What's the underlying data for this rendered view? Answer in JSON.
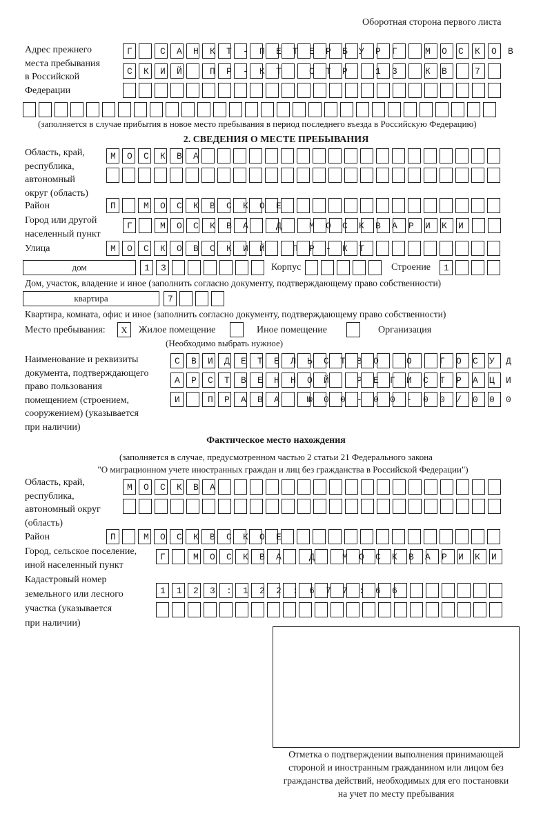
{
  "page_header": "Оборотная сторона первого листа",
  "previous_address": {
    "label": [
      "Адрес прежнего",
      "места пребывания",
      "в Российской",
      "Федерации"
    ],
    "rows": [
      "Г САНКТ-ПЕТЕРБУРГ МОСКОВ",
      "СКИЙ ПР-КТ СТР 13 КВ 7  ",
      "                        ",
      "                              "
    ],
    "note": "(заполняется в случае прибытия в новое место пребывания в период последнего въезда в Российскую Федерацию)"
  },
  "section2": {
    "title": "2. СВЕДЕНИЯ О МЕСТЕ ПРЕБЫВАНИЯ",
    "region_label": [
      "Область, край,",
      "республика,",
      "автономный",
      "округ (область)"
    ],
    "region_rows": [
      "МОСКВА                   ",
      "                         "
    ],
    "district_label": "Район",
    "district_row": "П МОСКВСКОЕ              ",
    "city_label": [
      "Город или другой",
      "населенный пункт"
    ],
    "city_row": "Г МОСКВА Д МОСКВАРИКИ   ",
    "street_label": "Улица",
    "street_row": "МОСКОВСКИЙ ПР-КТ         ",
    "house_type": "дом",
    "house_cells": "13      ",
    "korpus_label": "Корпус",
    "korpus_cells": "     ",
    "building_label": "Строение",
    "building_cells": "1   ",
    "house_caption": "Дом, участок, владение и иное (заполнить согласно документу, подтверждающему право собственности)",
    "apt_type": "квартира",
    "apt_cells": "7   ",
    "apt_caption": "Квартира, комната, офис и иное (заполнить согласно документу, подтверждающему право собственности)",
    "place_label": "Место пребывания:",
    "options": [
      {
        "label": "Жилое помещение",
        "mark": "X"
      },
      {
        "label": "Иное помещение",
        "mark": ""
      },
      {
        "label": "Организация",
        "mark": ""
      }
    ],
    "place_hint": "(Необходимо выбрать нужное)",
    "doc_label": [
      "Наименование и реквизиты",
      "документа, подтверждающего",
      "право пользования",
      "помещением (строением,",
      "сооружением) (указывается",
      "при наличии)"
    ],
    "doc_rows": [
      "СВИДЕТЕЛЬСТВО О ГОСУД",
      "АРСТВЕННОЙ РЕГИСТРАЦИ",
      "И ПРАВА №00-00-00/000"
    ]
  },
  "actual_location": {
    "title": "Фактическое место нахождения",
    "note": [
      "(заполняется в случае, предусмотренном частью 2 статьи 21 Федерального закона",
      "\"О миграционном учете иностранных граждан и лиц без гражданства в Российской Федерации\")"
    ],
    "region_label": [
      "Область, край,",
      "республика,",
      "автономный округ",
      "(область)"
    ],
    "region_rows": [
      "МОСКВА                  ",
      "                        "
    ],
    "district_label": "Район",
    "district_row": "П МОСКВСКОЕ              ",
    "city_label": [
      "Город, сельское поселение,",
      "иной населенный пункт"
    ],
    "city_row": "Г МОСКВА Д МОСКВАРИКИ ",
    "cadastral_label": [
      "Кадастровый номер",
      "земельного или лесного",
      "участка (указывается",
      "при наличии)"
    ],
    "cadastral_rows": [
      "1123:122:677:66       ",
      "                      "
    ]
  },
  "stamp_caption": [
    "Отметка о подтверждении выполнения принимающей",
    "стороной и иностранным гражданином или лицом без",
    "гражданства действий, необходимых для его постановки",
    "на учет по месту пребывания"
  ]
}
